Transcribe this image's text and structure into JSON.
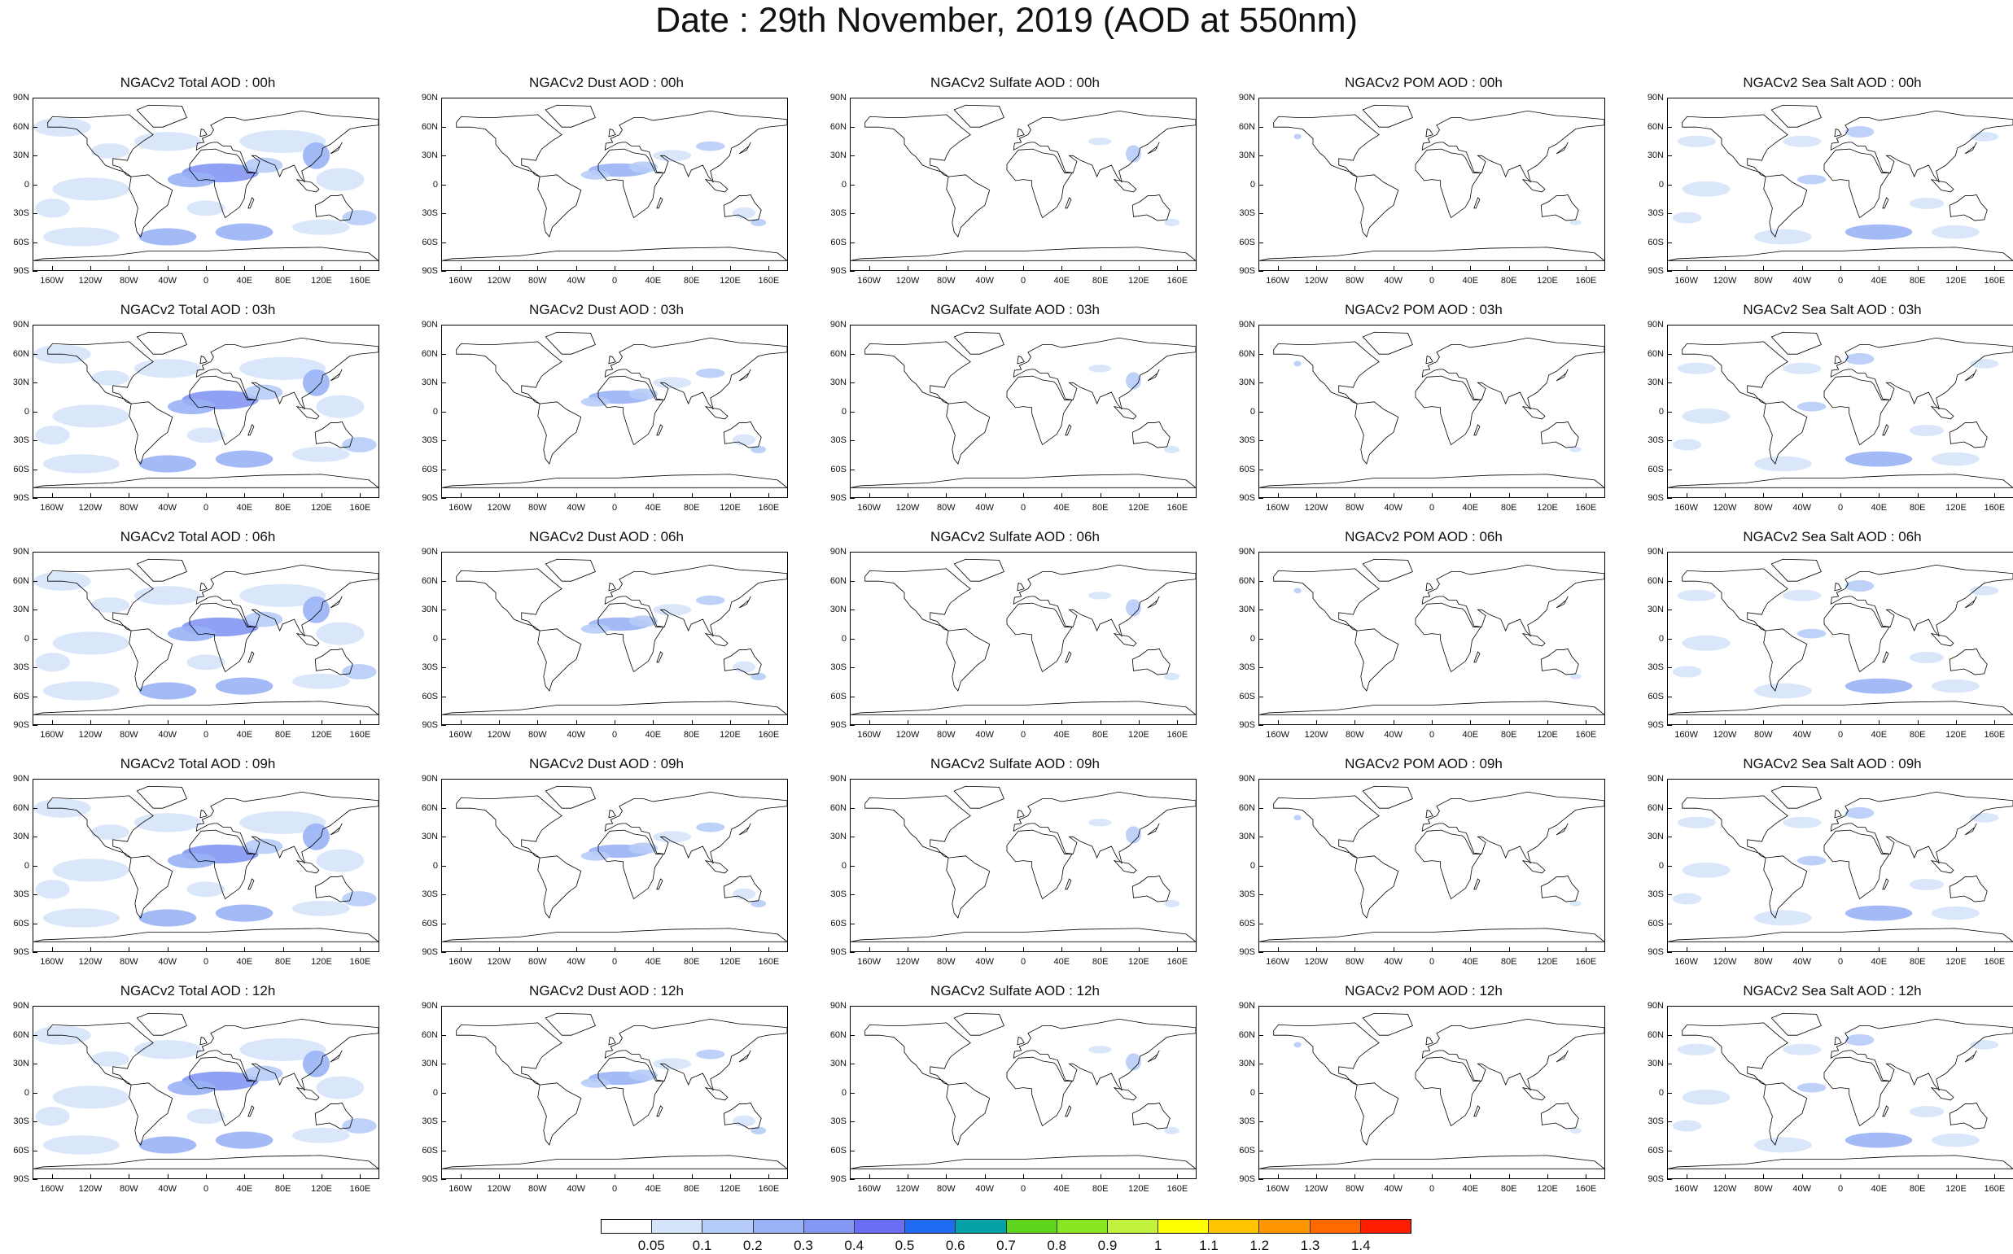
{
  "title": "Date : 29th November, 2019 (AOD at 550nm)",
  "lat_labels": [
    "90N",
    "60N",
    "30N",
    "0",
    "30S",
    "60S",
    "90S"
  ],
  "lon_labels": [
    "160W",
    "120W",
    "80W",
    "40W",
    "0",
    "40E",
    "80E",
    "120E",
    "160E"
  ],
  "lon_values": [
    -160,
    -120,
    -80,
    -40,
    0,
    40,
    80,
    120,
    160
  ],
  "panels": [
    {
      "title": "NGACv2 Total AOD : 00h",
      "species": "total"
    },
    {
      "title": "NGACv2 Dust AOD : 00h",
      "species": "dust"
    },
    {
      "title": "NGACv2 Sulfate AOD : 00h",
      "species": "sulfate"
    },
    {
      "title": "NGACv2 POM AOD : 00h",
      "species": "pom"
    },
    {
      "title": "NGACv2 Sea Salt AOD : 00h",
      "species": "seasalt"
    },
    {
      "title": "NGACv2 Total AOD : 03h",
      "species": "total"
    },
    {
      "title": "NGACv2 Dust AOD : 03h",
      "species": "dust"
    },
    {
      "title": "NGACv2 Sulfate AOD : 03h",
      "species": "sulfate"
    },
    {
      "title": "NGACv2 POM AOD : 03h",
      "species": "pom"
    },
    {
      "title": "NGACv2 Sea Salt AOD : 03h",
      "species": "seasalt"
    },
    {
      "title": "NGACv2 Total AOD : 06h",
      "species": "total"
    },
    {
      "title": "NGACv2 Dust AOD : 06h",
      "species": "dust"
    },
    {
      "title": "NGACv2 Sulfate AOD : 06h",
      "species": "sulfate"
    },
    {
      "title": "NGACv2 POM AOD : 06h",
      "species": "pom"
    },
    {
      "title": "NGACv2 Sea Salt AOD : 06h",
      "species": "seasalt"
    },
    {
      "title": "NGACv2 Total AOD : 09h",
      "species": "total"
    },
    {
      "title": "NGACv2 Dust AOD : 09h",
      "species": "dust"
    },
    {
      "title": "NGACv2 Sulfate AOD : 09h",
      "species": "sulfate"
    },
    {
      "title": "NGACv2 POM AOD : 09h",
      "species": "pom"
    },
    {
      "title": "NGACv2 Sea Salt  AOD : 09h",
      "species": "seasalt"
    },
    {
      "title": "NGACv2 Total AOD  : 12h",
      "species": "total"
    },
    {
      "title": "NGACv2 Dust AOD : 12h",
      "species": "dust"
    },
    {
      "title": "NGACv2 Sulfate AOD : 12h",
      "species": "sulfate"
    },
    {
      "title": "NGACv2 POM  AOD : 12h",
      "species": "pom"
    },
    {
      "title": "NGACv2 Sea Salt  AOD : 12h",
      "species": "seasalt"
    }
  ],
  "colorbar": {
    "colors": [
      "#ffffff",
      "#d6e4fb",
      "#b6ccf8",
      "#99b3f6",
      "#8497f4",
      "#6a6ef2",
      "#1f6cf2",
      "#06a1a8",
      "#5fd41f",
      "#88e622",
      "#c2f23e",
      "#ffff00",
      "#ffc300",
      "#ff9800",
      "#ff6a00",
      "#ff1d00"
    ],
    "labels": [
      "0.05",
      "0.1",
      "0.2",
      "0.3",
      "0.4",
      "0.5",
      "0.6",
      "0.7",
      "0.8",
      "0.9",
      "1",
      "1.1",
      "1.2",
      "1.3",
      "1.4"
    ]
  },
  "shade_colors": {
    "light": "#d6e4fb",
    "medium": "#b6ccf8",
    "strong": "#99b3f6",
    "deep": "#8497f4"
  }
}
